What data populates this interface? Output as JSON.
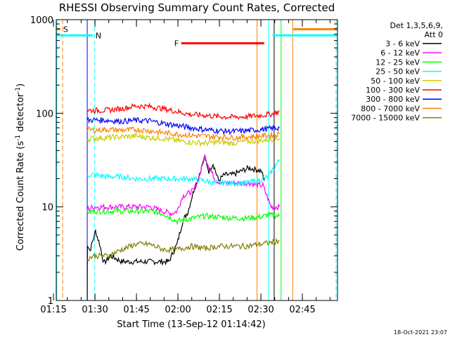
{
  "chart_data": {
    "type": "line",
    "title": "RHESSI Observing Summary Count Rates, Corrected",
    "xlabel": "Start Time (13-Sep-12 01:14:42)",
    "ylabel_main": "Corrected Count Rate (s",
    "ylabel_sup1": "-1",
    "ylabel_mid": " detector",
    "ylabel_sup2": "-1",
    "ylabel_end": ")",
    "footer": "18-Oct-2021 23:07",
    "y_scale": "log",
    "ylim": [
      1,
      1000
    ],
    "x_range_minutes": [
      1.3,
      103
    ],
    "x_ticks": [
      {
        "label": "01:15",
        "minutes": 0.3
      },
      {
        "label": "01:30",
        "minutes": 15.3
      },
      {
        "label": "01:45",
        "minutes": 30.3
      },
      {
        "label": "02:00",
        "minutes": 45.3
      },
      {
        "label": "02:15",
        "minutes": 60.3
      },
      {
        "label": "02:30",
        "minutes": 75.3
      },
      {
        "label": "02:45",
        "minutes": 90.3
      }
    ],
    "y_ticks": [
      {
        "label": "1",
        "value": 1
      },
      {
        "label": "10",
        "value": 10
      },
      {
        "label": "100",
        "value": 100
      },
      {
        "label": "1000",
        "value": 1000
      }
    ],
    "legend": {
      "header1": "Det 1,3,5,6,9,",
      "header2": "Att 0",
      "position": "top-right"
    },
    "series": [
      {
        "name": "3 - 6 keV",
        "color": "#000000",
        "points": [
          [
            12.5,
            1.0
          ],
          [
            12.6,
            4
          ],
          [
            13.5,
            3.4
          ],
          [
            15.5,
            5.5
          ],
          [
            17,
            4
          ],
          [
            18.5,
            2.5
          ],
          [
            21,
            3
          ],
          [
            25,
            2.6
          ],
          [
            30,
            2.6
          ],
          [
            35,
            2.6
          ],
          [
            40,
            2.6
          ],
          [
            42,
            2.6
          ],
          [
            45,
            4
          ],
          [
            47,
            7
          ],
          [
            49,
            9
          ],
          [
            51,
            15
          ],
          [
            53,
            22
          ],
          [
            55,
            34
          ],
          [
            56.5,
            24
          ],
          [
            58,
            29
          ],
          [
            60,
            19
          ],
          [
            62,
            22
          ],
          [
            65,
            22
          ],
          [
            68,
            24
          ],
          [
            71,
            26
          ],
          [
            74,
            25
          ],
          [
            75.5,
            24
          ],
          [
            76.5,
            19
          ]
        ]
      },
      {
        "name": "6 - 12 keV",
        "color": "#ff00ff",
        "points": [
          [
            12.5,
            9.5
          ],
          [
            15,
            10
          ],
          [
            20,
            10
          ],
          [
            25,
            10
          ],
          [
            30,
            10
          ],
          [
            35,
            10
          ],
          [
            40,
            9
          ],
          [
            43,
            8.5
          ],
          [
            45,
            9
          ],
          [
            47,
            13
          ],
          [
            49,
            14
          ],
          [
            51,
            15
          ],
          [
            53,
            21
          ],
          [
            55,
            35
          ],
          [
            57,
            25
          ],
          [
            59,
            19
          ],
          [
            62,
            18
          ],
          [
            65,
            18
          ],
          [
            68,
            18
          ],
          [
            71,
            18
          ],
          [
            74,
            17
          ],
          [
            76,
            17
          ],
          [
            79,
            10
          ],
          [
            82,
            10
          ]
        ]
      },
      {
        "name": "12 - 25 keV",
        "color": "#00ff00",
        "points": [
          [
            12.5,
            8.8
          ],
          [
            15,
            9
          ],
          [
            20,
            9
          ],
          [
            25,
            9
          ],
          [
            30,
            9
          ],
          [
            35,
            9
          ],
          [
            40,
            8.5
          ],
          [
            45,
            7
          ],
          [
            50,
            7.5
          ],
          [
            55,
            8
          ],
          [
            60,
            7.8
          ],
          [
            65,
            7.6
          ],
          [
            70,
            7.6
          ],
          [
            75,
            7.8
          ],
          [
            78,
            8.2
          ],
          [
            82,
            8
          ]
        ]
      },
      {
        "name": "25 - 50 keV",
        "color": "#00ffff",
        "points": [
          [
            12.5,
            22
          ],
          [
            15,
            22
          ],
          [
            20,
            21
          ],
          [
            25,
            21
          ],
          [
            30,
            20
          ],
          [
            35,
            20
          ],
          [
            40,
            20
          ],
          [
            45,
            20
          ],
          [
            50,
            20
          ],
          [
            55,
            19
          ],
          [
            58,
            18
          ],
          [
            62,
            18
          ],
          [
            66,
            18
          ],
          [
            70,
            18
          ],
          [
            74,
            19
          ],
          [
            78,
            21
          ],
          [
            80,
            26
          ],
          [
            82,
            32
          ]
        ]
      },
      {
        "name": "50 - 100 keV",
        "color": "#cccc00",
        "points": [
          [
            12.5,
            53
          ],
          [
            15,
            54
          ],
          [
            20,
            55
          ],
          [
            25,
            56
          ],
          [
            30,
            57
          ],
          [
            35,
            55
          ],
          [
            40,
            54
          ],
          [
            45,
            51
          ],
          [
            50,
            49
          ],
          [
            55,
            48
          ],
          [
            60,
            49
          ],
          [
            65,
            48
          ],
          [
            70,
            50
          ],
          [
            75,
            51
          ],
          [
            80,
            53
          ],
          [
            82,
            54
          ]
        ]
      },
      {
        "name": "100 - 300 keV",
        "color": "#ff0000",
        "points": [
          [
            12.5,
            108
          ],
          [
            15,
            107
          ],
          [
            20,
            108
          ],
          [
            25,
            112
          ],
          [
            30,
            120
          ],
          [
            35,
            118
          ],
          [
            40,
            112
          ],
          [
            45,
            104
          ],
          [
            50,
            97
          ],
          [
            55,
            95
          ],
          [
            60,
            92
          ],
          [
            65,
            91
          ],
          [
            70,
            92
          ],
          [
            75,
            95
          ],
          [
            80,
            99
          ],
          [
            82,
            105
          ]
        ]
      },
      {
        "name": "300 - 800 keV",
        "color": "#0000ff",
        "points": [
          [
            12.5,
            84
          ],
          [
            15,
            85
          ],
          [
            20,
            84
          ],
          [
            25,
            82
          ],
          [
            30,
            84
          ],
          [
            35,
            83
          ],
          [
            40,
            78
          ],
          [
            45,
            74
          ],
          [
            50,
            70
          ],
          [
            55,
            67
          ],
          [
            60,
            65
          ],
          [
            65,
            64
          ],
          [
            70,
            65
          ],
          [
            75,
            67
          ],
          [
            80,
            69
          ],
          [
            82,
            70
          ]
        ]
      },
      {
        "name": "800 - 7000 keV",
        "color": "#ff7f00",
        "points": [
          [
            12.5,
            67
          ],
          [
            15,
            66
          ],
          [
            20,
            67
          ],
          [
            25,
            66
          ],
          [
            30,
            67
          ],
          [
            35,
            65
          ],
          [
            40,
            62
          ],
          [
            45,
            60
          ],
          [
            50,
            58
          ],
          [
            55,
            57
          ],
          [
            60,
            56
          ],
          [
            65,
            55
          ],
          [
            70,
            56
          ],
          [
            75,
            57
          ],
          [
            80,
            59
          ],
          [
            82,
            60
          ]
        ]
      },
      {
        "name": "7000 - 15000 keV",
        "color": "#7f7f00",
        "points": [
          [
            12.5,
            2.8
          ],
          [
            15,
            3
          ],
          [
            20,
            3
          ],
          [
            25,
            3.5
          ],
          [
            30,
            4
          ],
          [
            35,
            4
          ],
          [
            40,
            3.5
          ],
          [
            45,
            3.5
          ],
          [
            50,
            3.8
          ],
          [
            55,
            3.6
          ],
          [
            60,
            3.8
          ],
          [
            65,
            3.8
          ],
          [
            70,
            3.8
          ],
          [
            75,
            4
          ],
          [
            80,
            4.2
          ],
          [
            82,
            4.4
          ]
        ]
      }
    ],
    "flag_bars": [
      {
        "label": "S",
        "color": "#ff7f00",
        "ranges": [
          [
            1.3,
            2.8
          ],
          [
            87,
            103
          ]
        ],
        "value": 790
      },
      {
        "label": "N",
        "color": "#00ffff",
        "ranges": [
          [
            1.3,
            14.5
          ],
          [
            79.5,
            103
          ]
        ],
        "value": 680
      },
      {
        "label": "F",
        "color": "#ff0000",
        "ranges": [
          [
            46.5,
            76.5
          ]
        ],
        "value": 560
      }
    ],
    "vertical_markers": [
      {
        "minutes": 1.5,
        "color": "#00ffff",
        "style": "solid"
      },
      {
        "minutes": 3.6,
        "color": "#ff7f00",
        "style": "dashed"
      },
      {
        "minutes": 12.5,
        "color": "#0000ff",
        "style": "solid"
      },
      {
        "minutes": 15.2,
        "color": "#00ffff",
        "style": "dashed"
      },
      {
        "minutes": 73.9,
        "color": "#ff7f00",
        "style": "solid"
      },
      {
        "minutes": 78.1,
        "color": "#00ffff",
        "style": "solid"
      },
      {
        "minutes": 80.1,
        "color": "#000000",
        "style": "solid"
      },
      {
        "minutes": 82.6,
        "color": "#00ff00",
        "style": "solid"
      },
      {
        "minutes": 86.8,
        "color": "#ff7f00",
        "style": "solid"
      },
      {
        "minutes": 102.5,
        "color": "#00ffff",
        "style": "dashed"
      }
    ]
  }
}
